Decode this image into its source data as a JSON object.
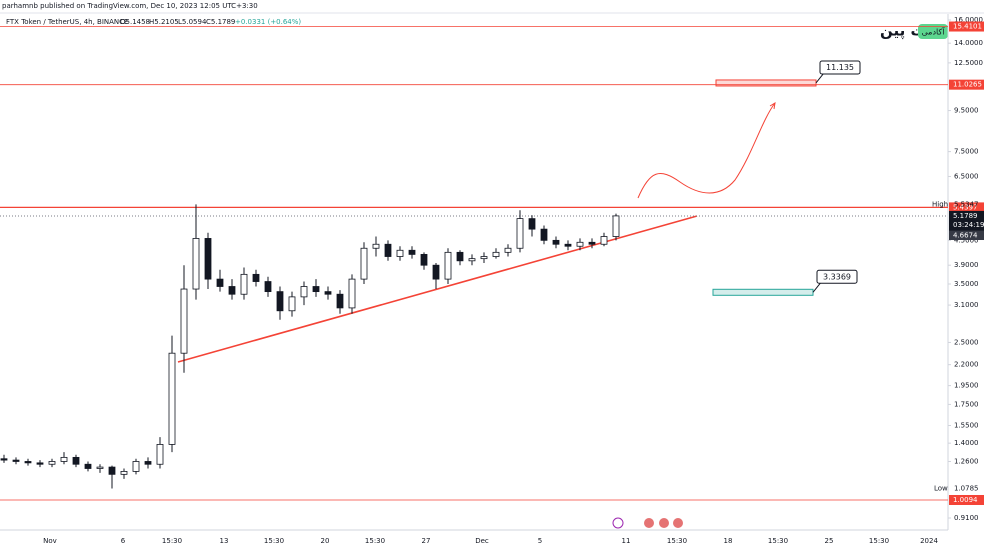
{
  "header": {
    "publisher": "parhamnb published on TradingView.com, Dec 10, 2023 12:05 UTC+3:30",
    "symbol": "FTX Token / TetherUS, 4h, BINANCE",
    "open": "O5.1458",
    "high": "H5.2105",
    "low": "L5.0594",
    "close": "C5.1789",
    "change": "+0.0331 (+0.64%)"
  },
  "logo": {
    "brand": "بیت پین",
    "badge": "آکادمی"
  },
  "chart_data": {
    "type": "candlestick",
    "log_scale": true,
    "up_color": "#ffffff",
    "down_color": "#131722",
    "ylim": [
      0.91,
      16
    ],
    "yticks": [
      {
        "value": 16,
        "label": "16.0000"
      },
      {
        "value": 14,
        "label": "14.0000"
      },
      {
        "value": 12.5,
        "label": "12.5000"
      },
      {
        "value": 9.5,
        "label": "9.5000"
      },
      {
        "value": 7.5,
        "label": "7.5000"
      },
      {
        "value": 6.5,
        "label": "6.5000"
      },
      {
        "value": 4.5,
        "label": "4.5000"
      },
      {
        "value": 3.9,
        "label": "3.9000"
      },
      {
        "value": 3.5,
        "label": "3.5000"
      },
      {
        "value": 3.1,
        "label": "3.1000"
      },
      {
        "value": 2.5,
        "label": "2.5000"
      },
      {
        "value": 2.2,
        "label": "2.2000"
      },
      {
        "value": 1.95,
        "label": "1.9500"
      },
      {
        "value": 1.75,
        "label": "1.7500"
      },
      {
        "value": 1.55,
        "label": "1.5500"
      },
      {
        "value": 1.4,
        "label": "1.4000"
      },
      {
        "value": 1.26,
        "label": "1.2600"
      },
      {
        "value": 0.91,
        "label": "0.9100"
      }
    ],
    "x_labels": [
      "Nov",
      "6",
      "15:30",
      "13",
      "15:30",
      "20",
      "15:30",
      "27",
      "Dec",
      "5",
      "11",
      "15:30",
      "18",
      "15:30",
      "25",
      "15:30",
      "2024"
    ],
    "open": [
      1.28,
      1.27,
      1.26,
      1.25,
      1.24,
      1.26,
      1.29,
      1.24,
      1.21,
      1.22,
      1.17,
      1.19,
      1.26,
      1.24,
      1.39,
      2.35,
      3.4,
      4.55,
      3.6,
      3.45,
      3.3,
      3.7,
      3.55,
      3.35,
      3.0,
      3.25,
      3.45,
      3.35,
      3.3,
      3.05,
      3.6,
      4.3,
      4.4,
      4.1,
      4.25,
      4.15,
      3.9,
      3.6,
      4.2,
      4.0,
      4.05,
      4.1,
      4.2,
      4.3,
      5.1,
      4.8,
      4.5,
      4.4,
      4.35,
      4.45,
      4.4,
      4.6
    ],
    "high": [
      1.31,
      1.29,
      1.28,
      1.27,
      1.28,
      1.33,
      1.31,
      1.26,
      1.24,
      1.23,
      1.21,
      1.28,
      1.29,
      1.45,
      2.6,
      3.9,
      5.5347,
      4.7,
      3.8,
      3.6,
      3.85,
      3.8,
      3.65,
      3.45,
      3.35,
      3.55,
      3.6,
      3.45,
      3.38,
      3.7,
      4.45,
      4.6,
      4.5,
      4.35,
      4.35,
      4.2,
      3.95,
      4.3,
      4.25,
      4.15,
      4.2,
      4.3,
      4.4,
      5.35,
      5.2,
      4.9,
      4.6,
      4.5,
      4.55,
      4.55,
      4.7,
      5.25
    ],
    "low": [
      1.25,
      1.24,
      1.23,
      1.22,
      1.22,
      1.24,
      1.22,
      1.19,
      1.18,
      1.0785,
      1.14,
      1.17,
      1.21,
      1.21,
      1.33,
      2.1,
      3.2,
      3.4,
      3.35,
      3.2,
      3.2,
      3.45,
      3.25,
      2.85,
      2.9,
      3.1,
      3.25,
      3.2,
      2.95,
      2.95,
      3.5,
      4.1,
      4.0,
      4.0,
      4.05,
      3.8,
      3.4,
      3.5,
      3.9,
      3.9,
      3.95,
      4.05,
      4.1,
      4.2,
      4.6,
      4.4,
      4.3,
      4.25,
      4.25,
      4.3,
      4.35,
      4.5
    ],
    "close": [
      1.27,
      1.26,
      1.25,
      1.24,
      1.26,
      1.29,
      1.24,
      1.21,
      1.22,
      1.17,
      1.19,
      1.26,
      1.24,
      1.39,
      2.35,
      3.4,
      4.55,
      3.6,
      3.45,
      3.3,
      3.7,
      3.55,
      3.35,
      3.0,
      3.25,
      3.45,
      3.35,
      3.3,
      3.05,
      3.6,
      4.3,
      4.4,
      4.1,
      4.25,
      4.15,
      3.9,
      3.6,
      4.2,
      4.0,
      4.05,
      4.1,
      4.2,
      4.3,
      5.1,
      4.8,
      4.5,
      4.4,
      4.35,
      4.45,
      4.4,
      4.6,
      5.18
    ],
    "price_lines": [
      {
        "value": 15.4101,
        "color": "#f44336"
      },
      {
        "value": 11.0265,
        "color": "#f44336"
      },
      {
        "value": 5.4397,
        "color": "#f44336"
      },
      {
        "value": 1.0094,
        "color": "#f44336"
      }
    ],
    "current": {
      "value": 5.1789,
      "countdown": "03:24:19"
    },
    "prev_tag": 4.6674,
    "high_mark": {
      "label": "High",
      "value": 5.5347
    },
    "low_mark": {
      "label": "Low",
      "value": 1.0785
    },
    "targets": [
      {
        "value": 11.135,
        "color": "#f44336"
      },
      {
        "value": 3.3369,
        "color": "#26a69a"
      }
    ]
  }
}
